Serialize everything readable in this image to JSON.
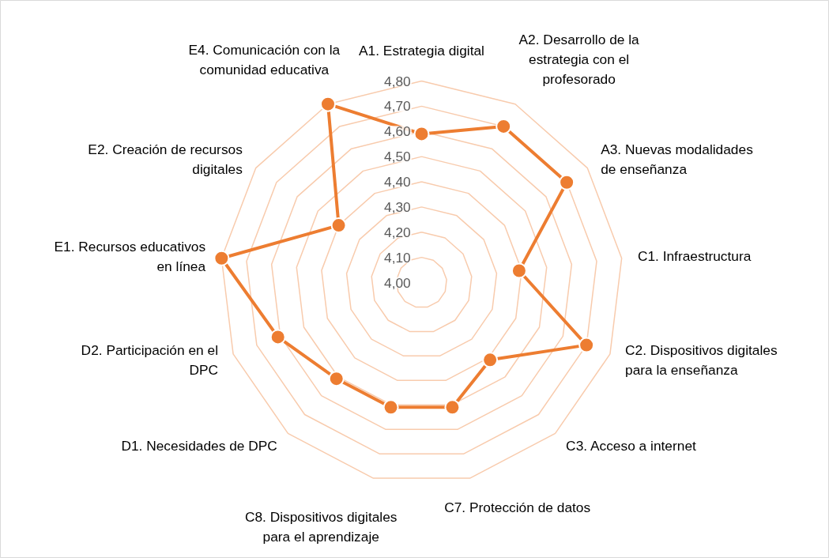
{
  "chart_data": {
    "type": "radar",
    "categories": [
      "A1. Estrategia digital",
      "A2. Desarrollo de la\nestrategia con el\nprofesorado",
      "A3. Nuevas modalidades\nde enseñanza",
      "C1. Infraestructura",
      "C2. Dispositivos digitales\npara la enseñanza",
      "C3. Acceso a internet",
      "C7. Protección de datos",
      "C8. Dispositivos digitales\npara el aprendizaje",
      "D1. Necesidades de DPC",
      "D2. Participación en el\nDPC",
      "E1. Recursos educativos\nen línea",
      "E2. Creación de recursos\ndigitales",
      "E4. Comunicación con la\ncomunidad educativa"
    ],
    "series": [
      {
        "color": "#ed7d31",
        "values": [
          4.59,
          4.7,
          4.7,
          4.39,
          4.7,
          4.41,
          4.51,
          4.51,
          4.51,
          4.61,
          4.8,
          4.4,
          4.8
        ]
      }
    ],
    "ylim": [
      4.0,
      4.8
    ],
    "yticks": [
      {
        "value": 4.0,
        "label": "4,00"
      },
      {
        "value": 4.1,
        "label": "4,10"
      },
      {
        "value": 4.2,
        "label": "4,20"
      },
      {
        "value": 4.3,
        "label": "4,30"
      },
      {
        "value": 4.4,
        "label": "4,40"
      },
      {
        "value": 4.5,
        "label": "4,50"
      },
      {
        "value": 4.6,
        "label": "4,60"
      },
      {
        "value": 4.7,
        "label": "4,70"
      },
      {
        "value": 4.8,
        "label": "4,80"
      }
    ],
    "grid": true,
    "marker": "circle",
    "line_style": "solid"
  }
}
